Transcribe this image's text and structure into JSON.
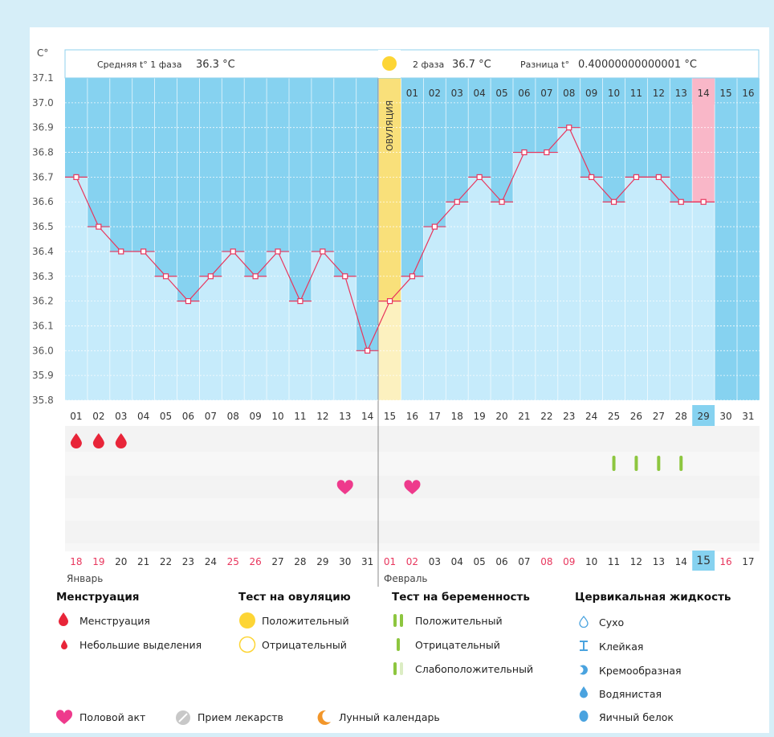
{
  "header": {
    "unit": "C°",
    "phase1_label": "Средняя t° 1 фаза",
    "phase1_value": "36.3 °C",
    "phase2_label": "2 фаза",
    "phase2_value": "36.7 °C",
    "diff_label": "Разница t°",
    "diff_value": "0.40000000000001 °C",
    "ovulation_label": "ОВУЛЯЦИЯ"
  },
  "chart_data": {
    "type": "line",
    "ylim": [
      35.8,
      37.1
    ],
    "y_ticks": [
      "37.1",
      "37.0",
      "36.9",
      "36.8",
      "36.7",
      "36.6",
      "36.5",
      "36.4",
      "36.3",
      "36.2",
      "36.1",
      "36.0",
      "35.9",
      "35.8"
    ],
    "cycle_days": [
      "01",
      "02",
      "03",
      "04",
      "05",
      "06",
      "07",
      "08",
      "09",
      "10",
      "11",
      "12",
      "13",
      "14",
      "15",
      "16",
      "17",
      "18",
      "19",
      "20",
      "21",
      "22",
      "23",
      "24",
      "25",
      "26",
      "27",
      "28",
      "29",
      "30",
      "31"
    ],
    "phase2_days": [
      "01",
      "02",
      "03",
      "04",
      "05",
      "06",
      "07",
      "08",
      "09",
      "10",
      "11",
      "12",
      "13",
      "14",
      "15",
      "16"
    ],
    "temperatures": [
      36.7,
      36.5,
      36.4,
      36.4,
      36.3,
      36.2,
      36.3,
      36.4,
      36.3,
      36.4,
      36.2,
      36.4,
      36.3,
      36.0,
      36.2,
      36.3,
      36.5,
      36.6,
      36.7,
      36.6,
      36.8,
      36.8,
      36.9,
      36.7,
      36.6,
      36.7,
      36.7,
      36.6,
      36.6,
      null,
      null
    ],
    "ovulation_day": "15",
    "highlight_day": "29",
    "calendar_dates": [
      "18",
      "19",
      "20",
      "21",
      "22",
      "23",
      "24",
      "25",
      "26",
      "27",
      "28",
      "29",
      "30",
      "31",
      "01",
      "02",
      "03",
      "04",
      "05",
      "06",
      "07",
      "08",
      "09",
      "10",
      "11",
      "12",
      "13",
      "14",
      "15",
      "16",
      "17"
    ],
    "red_dates": [
      "18",
      "19",
      "25",
      "26",
      "01",
      "02",
      "08",
      "09",
      "16"
    ],
    "today_date": "15",
    "months": [
      "Январь",
      "Февраль"
    ],
    "colors": {
      "line": "#e8365d",
      "sky": "#86d2f0",
      "fill": "#c6ebfb",
      "ovulation": "#f9e07a",
      "highlight": "#f9b7c8"
    }
  },
  "markers": {
    "menstruation_days": [
      "01",
      "02",
      "03"
    ],
    "intercourse_days": [
      "13",
      "16"
    ],
    "pregnancy_test_negative_days": [
      "25",
      "26",
      "27",
      "28"
    ]
  },
  "legend": {
    "menstruation": {
      "title": "Менструация",
      "items": [
        "Менструация",
        "Небольшие выделения"
      ]
    },
    "ovulation_test": {
      "title": "Тест на овуляцию",
      "items": [
        "Положительный",
        "Отрицательный"
      ]
    },
    "pregnancy_test": {
      "title": "Тест на беременность",
      "items": [
        "Положительный",
        "Отрицательный",
        "Слабоположительный"
      ]
    },
    "cervical_fluid": {
      "title": "Цервикальная жидкость",
      "items": [
        "Сухо",
        "Клейкая",
        "Кремообразная",
        "Водянистая",
        "Яичный белок"
      ]
    },
    "bottom": [
      "Половой акт",
      "Прием лекарств",
      "Лунный календарь"
    ]
  }
}
